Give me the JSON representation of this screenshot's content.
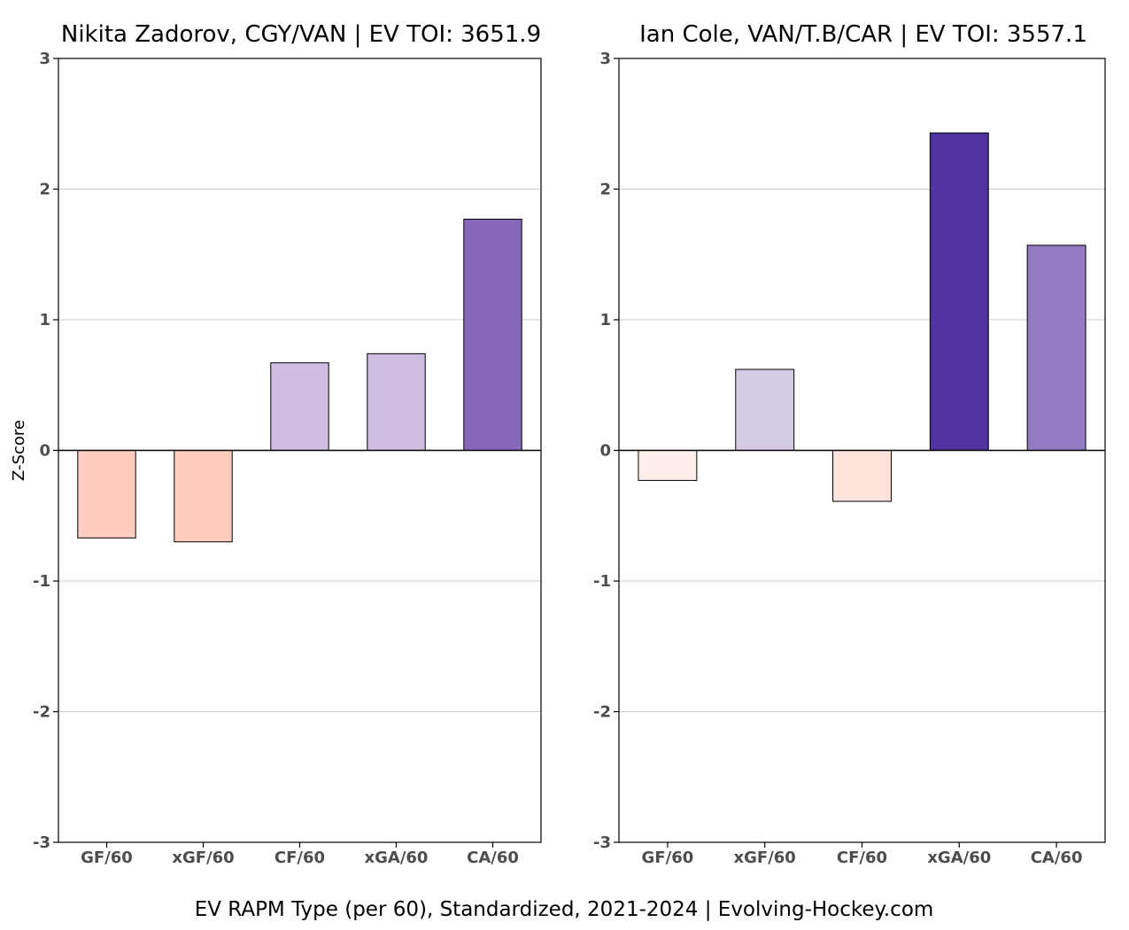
{
  "chart_data": [
    {
      "type": "bar",
      "title": "Nikita Zadorov, CGY/VAN  |  EV TOI: 3651.9",
      "ylabel": "Z-Score",
      "ylim": [
        -3,
        3
      ],
      "yticks": [
        -3,
        -2,
        -1,
        0,
        1,
        2,
        3
      ],
      "grid": true,
      "categories": [
        "GF/60",
        "xGF/60",
        "CF/60",
        "xGA/60",
        "CA/60"
      ],
      "values": [
        -0.67,
        -0.7,
        0.67,
        0.74,
        1.77
      ],
      "colors": [
        "#fecdbf",
        "#fecdbf",
        "#cebfe2",
        "#cebfe2",
        "#8568ba"
      ]
    },
    {
      "type": "bar",
      "title": "Ian Cole, VAN/T.B/CAR  |  EV TOI: 3557.1",
      "ylabel": "",
      "ylim": [
        -3,
        3
      ],
      "yticks": [
        -3,
        -2,
        -1,
        0,
        1,
        2,
        3
      ],
      "grid": true,
      "categories": [
        "GF/60",
        "xGF/60",
        "CF/60",
        "xGA/60",
        "CA/60"
      ],
      "values": [
        -0.23,
        0.62,
        -0.39,
        2.43,
        1.57
      ],
      "colors": [
        "#feeee9",
        "#d4cae6",
        "#fee2dc",
        "#4f33a0",
        "#937bc1"
      ]
    }
  ],
  "caption": "EV RAPM Type (per 60), Standardized, 2021-2024    |    Evolving-Hockey.com"
}
